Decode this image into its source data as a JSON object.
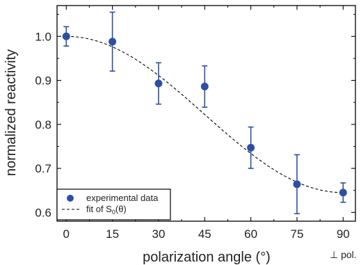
{
  "chart_data": {
    "type": "scatter",
    "xlabel": "polarization angle (°)",
    "ylabel": "normalized reactivity",
    "xlim": [
      -3,
      94
    ],
    "ylim": [
      0.58,
      1.07
    ],
    "x_ticks": [
      0,
      15,
      30,
      45,
      60,
      75,
      90
    ],
    "y_ticks": [
      0.6,
      0.7,
      0.8,
      0.9,
      1.0
    ],
    "x_tick_labels": [
      "0",
      "15",
      "30",
      "45",
      "60",
      "75",
      "90"
    ],
    "y_tick_labels": [
      "0.6",
      "0.7",
      "0.8",
      "0.9",
      "1.0"
    ],
    "x_annotation": "⊥ pol.",
    "grid": false,
    "legend_position": "bottom-left",
    "series": [
      {
        "name": "experimental data",
        "kind": "points",
        "color": "#2e4fa3",
        "x": [
          0,
          15,
          30,
          45,
          60,
          75,
          90
        ],
        "y": [
          1.0,
          0.988,
          0.893,
          0.886,
          0.747,
          0.664,
          0.645
        ],
        "error": [
          0.022,
          0.067,
          0.047,
          0.047,
          0.047,
          0.067,
          0.022
        ]
      },
      {
        "name_prefix": "fit of S",
        "name_subscript": "0",
        "name_suffix": "(θ)",
        "kind": "dashed-line",
        "color": "#000000",
        "function": "1 - 0.355*sin^2(theta)"
      }
    ]
  }
}
